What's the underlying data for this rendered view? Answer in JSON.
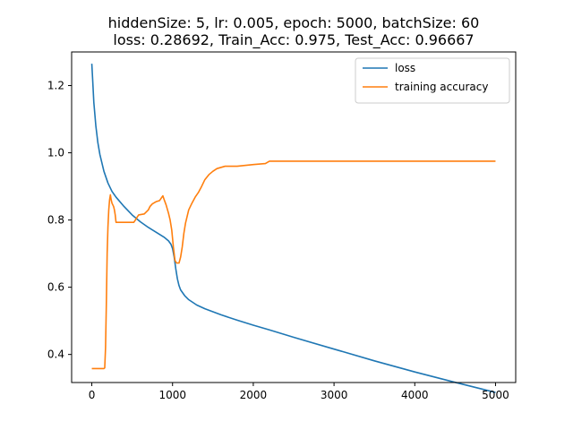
{
  "chart_data": {
    "type": "line",
    "title": "hiddenSize: 5, lr: 0.005, epoch: 5000, batchSize: 60",
    "subtitle": "loss: 0.28692, Train_Acc: 0.975, Test_Acc: 0.96667",
    "xlabel": "",
    "ylabel": "",
    "xlim": [
      -250,
      5250
    ],
    "ylim": [
      0.3165,
      1.3
    ],
    "xticks": [
      0,
      1000,
      2000,
      3000,
      4000,
      5000
    ],
    "yticks": [
      0.4,
      0.6,
      0.8,
      1.0,
      1.2
    ],
    "grid": false,
    "legend_position": "upper right",
    "series": [
      {
        "name": "loss",
        "color": "#1f77b4",
        "points": [
          [
            0,
            1.265
          ],
          [
            10,
            1.22
          ],
          [
            25,
            1.15
          ],
          [
            50,
            1.08
          ],
          [
            75,
            1.03
          ],
          [
            100,
            0.995
          ],
          [
            150,
            0.945
          ],
          [
            200,
            0.91
          ],
          [
            250,
            0.885
          ],
          [
            300,
            0.868
          ],
          [
            400,
            0.84
          ],
          [
            500,
            0.815
          ],
          [
            600,
            0.795
          ],
          [
            700,
            0.778
          ],
          [
            800,
            0.763
          ],
          [
            900,
            0.748
          ],
          [
            950,
            0.738
          ],
          [
            980,
            0.728
          ],
          [
            1000,
            0.715
          ],
          [
            1020,
            0.69
          ],
          [
            1040,
            0.655
          ],
          [
            1060,
            0.625
          ],
          [
            1080,
            0.605
          ],
          [
            1100,
            0.592
          ],
          [
            1150,
            0.575
          ],
          [
            1200,
            0.563
          ],
          [
            1300,
            0.547
          ],
          [
            1400,
            0.536
          ],
          [
            1500,
            0.527
          ],
          [
            1600,
            0.518
          ],
          [
            1800,
            0.502
          ],
          [
            2000,
            0.487
          ],
          [
            2200,
            0.473
          ],
          [
            2500,
            0.451
          ],
          [
            3000,
            0.416
          ],
          [
            3500,
            0.381
          ],
          [
            4000,
            0.348
          ],
          [
            4500,
            0.317
          ],
          [
            5000,
            0.287
          ]
        ]
      },
      {
        "name": "training accuracy",
        "color": "#ff7f0e",
        "points": [
          [
            0,
            0.358
          ],
          [
            150,
            0.358
          ],
          [
            160,
            0.36
          ],
          [
            170,
            0.42
          ],
          [
            180,
            0.55
          ],
          [
            190,
            0.7
          ],
          [
            200,
            0.78
          ],
          [
            210,
            0.83
          ],
          [
            220,
            0.86
          ],
          [
            230,
            0.875
          ],
          [
            240,
            0.86
          ],
          [
            250,
            0.85
          ],
          [
            260,
            0.845
          ],
          [
            270,
            0.84
          ],
          [
            280,
            0.83
          ],
          [
            290,
            0.815
          ],
          [
            300,
            0.793
          ],
          [
            400,
            0.793
          ],
          [
            520,
            0.793
          ],
          [
            540,
            0.8
          ],
          [
            560,
            0.808
          ],
          [
            580,
            0.815
          ],
          [
            650,
            0.818
          ],
          [
            700,
            0.83
          ],
          [
            720,
            0.84
          ],
          [
            750,
            0.848
          ],
          [
            800,
            0.855
          ],
          [
            840,
            0.858
          ],
          [
            860,
            0.865
          ],
          [
            880,
            0.872
          ],
          [
            900,
            0.858
          ],
          [
            920,
            0.845
          ],
          [
            950,
            0.82
          ],
          [
            970,
            0.8
          ],
          [
            990,
            0.77
          ],
          [
            1010,
            0.72
          ],
          [
            1030,
            0.68
          ],
          [
            1050,
            0.672
          ],
          [
            1080,
            0.672
          ],
          [
            1100,
            0.69
          ],
          [
            1120,
            0.72
          ],
          [
            1140,
            0.76
          ],
          [
            1160,
            0.79
          ],
          [
            1200,
            0.83
          ],
          [
            1240,
            0.85
          ],
          [
            1280,
            0.868
          ],
          [
            1320,
            0.882
          ],
          [
            1360,
            0.9
          ],
          [
            1400,
            0.92
          ],
          [
            1450,
            0.935
          ],
          [
            1500,
            0.945
          ],
          [
            1550,
            0.953
          ],
          [
            1650,
            0.96
          ],
          [
            1800,
            0.96
          ],
          [
            2000,
            0.965
          ],
          [
            2150,
            0.968
          ],
          [
            2200,
            0.975
          ],
          [
            3000,
            0.975
          ],
          [
            4000,
            0.975
          ],
          [
            5000,
            0.975
          ]
        ]
      }
    ]
  }
}
